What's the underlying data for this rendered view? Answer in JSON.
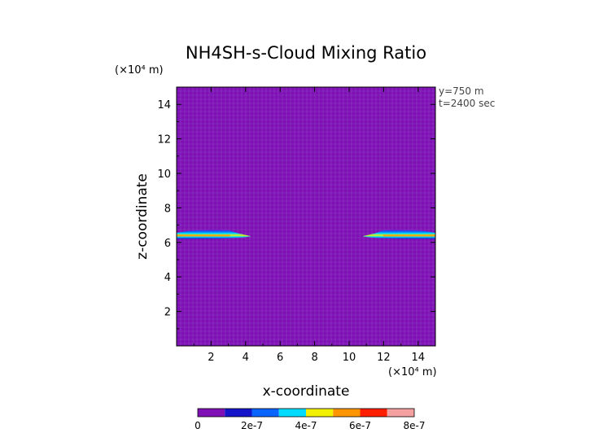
{
  "chart_data": {
    "type": "heatmap",
    "title": "NH4SH-s-Cloud Mixing Ratio",
    "xlabel": "x-coordinate",
    "ylabel": "z-coordinate",
    "x_unit": "(×10⁴ m)",
    "z_unit": "(×10⁴ m)",
    "annotations": [
      "y=750 m",
      "t=2400 sec"
    ],
    "xlim": [
      0,
      15
    ],
    "ylim": [
      0,
      15
    ],
    "x_ticks": [
      2,
      4,
      6,
      8,
      10,
      12,
      14
    ],
    "y_ticks": [
      2,
      4,
      6,
      8,
      10,
      12,
      14
    ],
    "background_value": 0,
    "grid": true,
    "cloud_features": [
      {
        "x_range": [
          0,
          4.3
        ],
        "z_range": [
          6.2,
          6.7
        ],
        "core_z": 6.4,
        "max_value": 6e-07
      },
      {
        "x_range": [
          10.8,
          15
        ],
        "z_range": [
          6.2,
          6.7
        ],
        "core_z": 6.4,
        "max_value": 6e-07
      }
    ],
    "colorbar": {
      "levels": [
        0,
        1e-07,
        2e-07,
        3e-07,
        4e-07,
        5e-07,
        6e-07,
        7e-07,
        8e-07
      ],
      "tick_labels": [
        "0",
        "2e-7",
        "4e-7",
        "6e-7",
        "8e-7"
      ],
      "colors": [
        "#7f10b5",
        "#1414c8",
        "#0a64ff",
        "#00dcff",
        "#f0f000",
        "#ff9600",
        "#ff1e00",
        "#f5a0a0"
      ]
    }
  }
}
